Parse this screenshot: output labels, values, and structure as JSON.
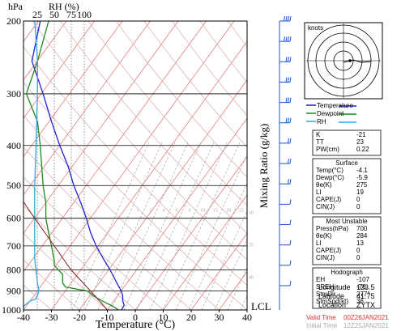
{
  "colors": {
    "temperature": "#2020d0",
    "dewpoint": "#1f8a1f",
    "rh": "#35a8e0",
    "parcel": "#8b1a1a",
    "isotherm": "#e06a6a",
    "dry_adiabat": "#d8aaaa",
    "mixing_ratio": "#a8a8a8",
    "wind": "#1a55cc",
    "valid_time": "#e03030"
  },
  "chart_data": {
    "type": "line",
    "title": "",
    "xlabel": "Temperature (°C)",
    "ylabel": "hPa",
    "right_label": "Mixing Ratio (g/kg)",
    "top_label": "RH (%)",
    "xlim": [
      -40,
      40
    ],
    "ylim": [
      1000,
      200
    ],
    "y_scale": "log",
    "x_ticks": [
      "-40",
      "-30",
      "-20",
      "-10",
      "0",
      "10",
      "20",
      "30",
      "40"
    ],
    "y_ticks": [
      {
        "p": 200,
        "label": "200"
      },
      {
        "p": 300,
        "label": "300"
      },
      {
        "p": 400,
        "label": "400"
      },
      {
        "p": 500,
        "label": "500"
      },
      {
        "p": 600,
        "label": "600"
      },
      {
        "p": 700,
        "label": "700"
      },
      {
        "p": 800,
        "label": "800"
      },
      {
        "p": 900,
        "label": "900"
      },
      {
        "p": 1000,
        "label": "1000"
      }
    ],
    "rh_ticks": [
      "25",
      "50",
      "75",
      "100"
    ],
    "mixing_ratio_labels": [
      "1",
      "2",
      "4",
      "6",
      "8",
      "10",
      "15",
      "20",
      "25",
      "30",
      "35",
      "40"
    ],
    "lcl_label": "LCL",
    "series": [
      {
        "name": "Temperature",
        "p": [
          1000,
          975,
          950,
          925,
          900,
          875,
          850,
          800,
          750,
          700,
          650,
          600,
          550,
          500,
          450,
          400,
          350,
          300,
          250,
          200
        ],
        "t": [
          -5,
          -4,
          -4.5,
          -4.5,
          -5,
          -6,
          -7,
          -9,
          -11.5,
          -14,
          -16,
          -17.5,
          -19.5,
          -22,
          -24,
          -27,
          -30,
          -33,
          -37,
          -34
        ]
      },
      {
        "name": "Dewpoint",
        "p": [
          1000,
          980,
          950,
          925,
          900,
          880,
          860,
          820,
          780,
          760,
          700,
          650,
          600,
          550,
          500,
          400,
          350,
          300,
          250,
          200
        ],
        "t": [
          -6,
          -8,
          -12,
          -15,
          -17,
          -25,
          -26,
          -26,
          -29,
          -29,
          -30,
          -31,
          -32,
          -32,
          -33,
          -34,
          -35,
          -39,
          -35,
          -31
        ]
      },
      {
        "name": "RH",
        "p": [
          1000,
          980,
          950,
          940,
          920,
          900,
          860,
          800,
          750,
          700,
          600,
          500,
          400,
          300,
          250,
          200
        ],
        "t": [
          -40,
          -40,
          -37.5,
          -35.5,
          -35,
          -34.5,
          -35,
          -35.5,
          -36,
          -36,
          -36,
          -36,
          -35.5,
          -35,
          -35,
          -36
        ]
      },
      {
        "name": "Parcel",
        "p": [
          1000,
          900,
          800,
          700,
          600,
          500,
          400,
          300
        ],
        "t": [
          -10,
          -16,
          -23,
          -29,
          -36,
          -44,
          -54,
          -66
        ]
      }
    ],
    "wind_barbs_speed_kt": [
      36,
      36,
      34,
      32,
      30,
      28,
      24,
      20,
      18,
      14,
      12,
      10,
      8,
      6
    ]
  },
  "hodograph": {
    "title": "knots"
  },
  "legend": [
    {
      "label": "Temperature",
      "color": "#2020d0"
    },
    {
      "label": "Dewpoint",
      "color": "#1f8a1f"
    },
    {
      "label": "RH",
      "color": "#35a8e0"
    }
  ],
  "indices": [
    {
      "key": "K",
      "value": "-21"
    },
    {
      "key": "TT",
      "value": "23"
    },
    {
      "key": "PW(cm)",
      "value": "0.22"
    }
  ],
  "surface": {
    "title": "Surface",
    "rows": [
      {
        "key": "Temp(°C)",
        "value": "-4.1"
      },
      {
        "key": "Dewp(°C)",
        "value": "-5.9"
      },
      {
        "key": "θe(K)",
        "value": "275"
      },
      {
        "key": "LI",
        "value": "19"
      },
      {
        "key": "CAPE(J)",
        "value": "0"
      },
      {
        "key": "CIN(J)",
        "value": "0"
      }
    ]
  },
  "most_unstable": {
    "title": "Most Unstable",
    "rows": [
      {
        "key": "Press(hPa)",
        "value": "700"
      },
      {
        "key": "θe(K)",
        "value": "284"
      },
      {
        "key": "LI",
        "value": "13"
      },
      {
        "key": "CAPE(J)",
        "value": "0"
      },
      {
        "key": "CIN(J)",
        "value": "0"
      }
    ]
  },
  "hodo_table": {
    "title": "Hodograph",
    "rows": [
      {
        "key": "EH",
        "value": "-107"
      },
      {
        "key": "SREH",
        "value": "-76."
      },
      {
        "key": "StmDir",
        "value": "277°"
      },
      {
        "key": "StmSpd(kt)",
        "value": "36"
      }
    ]
  },
  "station": [
    {
      "key": "Longitude",
      "value": "123.5"
    },
    {
      "key": "Latitude",
      "value": "41.75"
    },
    {
      "key": "Location",
      "value": "ZYTX"
    }
  ],
  "valid_time": {
    "label": "Valid Time",
    "value": "00Z26JAN2021"
  },
  "initial_time": {
    "label": "Initial Time",
    "value": "12Z25JAN2021"
  }
}
